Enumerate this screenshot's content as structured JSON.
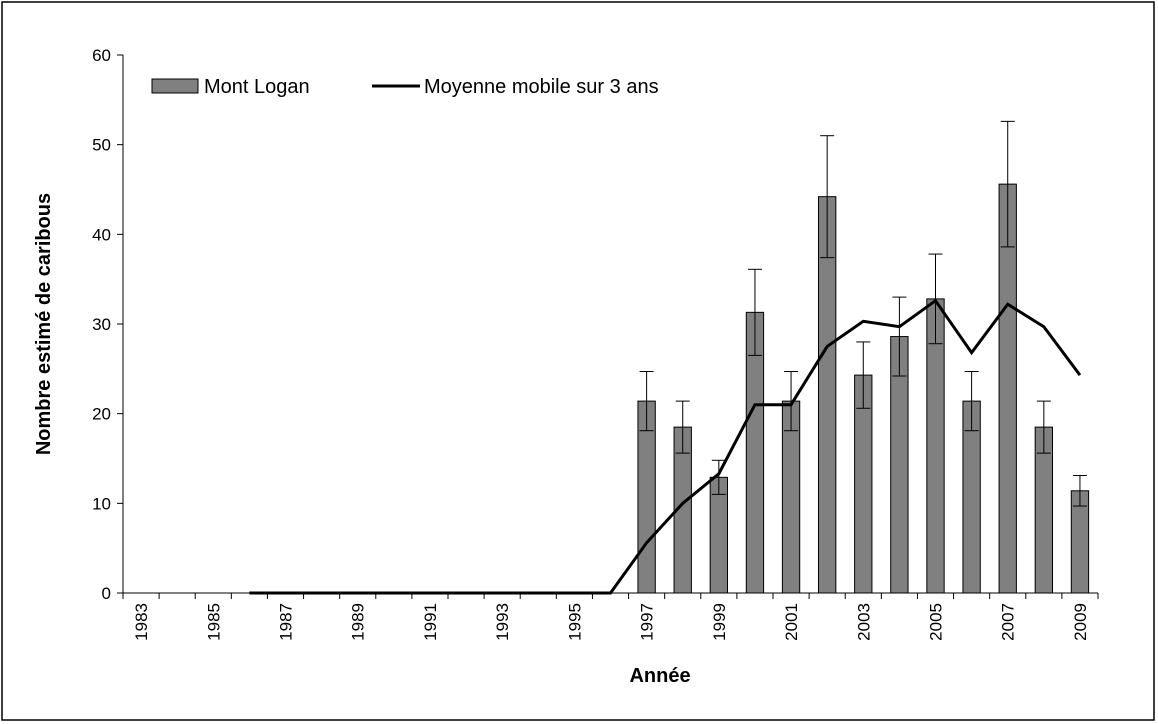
{
  "chart_data": {
    "type": "bar",
    "x_label": "Année",
    "y_label": "Nombre estimé de caribous",
    "categories": [
      "1983",
      null,
      "1985",
      null,
      "1987",
      null,
      "1989",
      null,
      "1991",
      null,
      "1993",
      null,
      "1995",
      null,
      "1997",
      null,
      "1999",
      null,
      "2001",
      null,
      "2003",
      null,
      "2005",
      null,
      "2007",
      null,
      "2009"
    ],
    "series": [
      {
        "name": "Mont Logan",
        "type": "bar",
        "color": "#808080",
        "values": [
          0,
          0,
          0,
          0,
          0,
          0,
          0,
          0,
          0,
          0,
          0,
          0,
          0,
          0,
          21.4,
          18.5,
          12.9,
          31.3,
          21.4,
          44.2,
          24.3,
          28.6,
          32.8,
          21.4,
          45.6,
          18.5,
          11.4
        ],
        "errors": [
          0,
          0,
          0,
          0,
          0,
          0,
          0,
          0,
          0,
          0,
          0,
          0,
          0,
          0,
          3.3,
          2.9,
          1.9,
          4.8,
          3.3,
          6.8,
          3.7,
          4.4,
          5,
          3.3,
          7,
          2.9,
          1.7
        ]
      },
      {
        "name": "Moyenne mobile sur 3 ans",
        "type": "line",
        "color": "#000000",
        "values": [
          null,
          null,
          null,
          0,
          0,
          0,
          0,
          0,
          0,
          0,
          0,
          0,
          0,
          0,
          5.6,
          10,
          13.3,
          21,
          21,
          27.5,
          30.3,
          29.7,
          32.6,
          26.8,
          32.2,
          29.7,
          24.3
        ]
      }
    ],
    "ylim": [
      0,
      60
    ],
    "yticks": [
      0,
      10,
      20,
      30,
      40,
      50,
      60
    ],
    "grid": false,
    "legend": "top-left"
  }
}
